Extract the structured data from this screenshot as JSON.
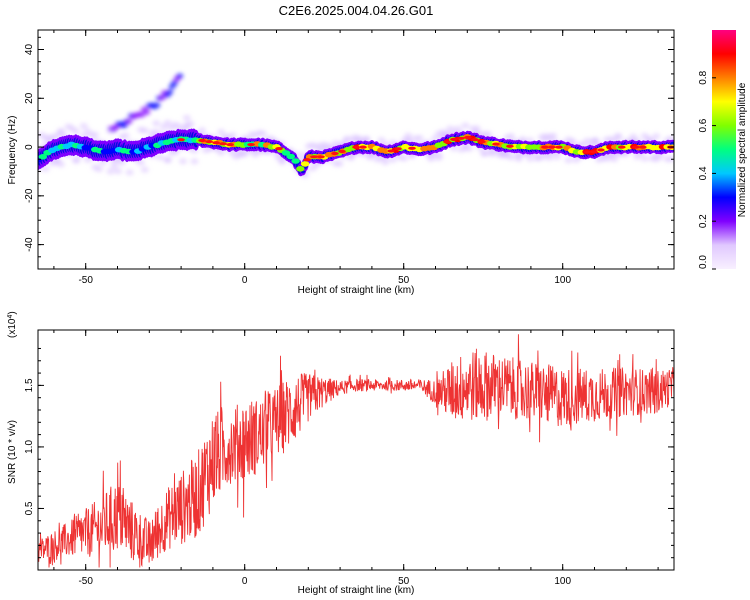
{
  "title": "C2E6.2025.004.04.26.G01",
  "colorbar": {
    "label": "Normalized spectral amplitude",
    "ticks": [
      "0.0",
      "0.2",
      "0.4",
      "0.6",
      "0.8"
    ],
    "tick_values": [
      0.0,
      0.2,
      0.4,
      0.6,
      0.8
    ],
    "range": [
      0,
      1
    ],
    "colormap": [
      "#f8f0ff",
      "#e0c8ff",
      "#8000ff",
      "#0000ff",
      "#00c8ff",
      "#00ff80",
      "#80ff00",
      "#ffff00",
      "#ff8000",
      "#ff0000",
      "#ff0080"
    ]
  },
  "chart_data": [
    {
      "type": "heatmap",
      "xlabel": "Height of straight line (km)",
      "ylabel": "Frequency (Hz)",
      "xlim": [
        -65,
        135
      ],
      "ylim": [
        -50,
        48
      ],
      "xticks": [
        -50,
        0,
        50,
        100
      ],
      "yticks": [
        40,
        20,
        0,
        -20,
        -40
      ],
      "ridge": {
        "x": [
          -65,
          -60,
          -55,
          -50,
          -45,
          -40,
          -35,
          -30,
          -25,
          -20,
          -15,
          -10,
          -5,
          0,
          5,
          10,
          15,
          18,
          20,
          25,
          30,
          35,
          40,
          45,
          50,
          55,
          60,
          65,
          70,
          75,
          80,
          85,
          90,
          95,
          100,
          105,
          110,
          115,
          120,
          125,
          130,
          135
        ],
        "freq": [
          -5,
          -1,
          1,
          0,
          -2,
          -1,
          -2,
          0,
          2,
          3,
          3,
          2,
          1,
          1,
          1,
          0,
          -4,
          -10,
          -4,
          -4,
          -2,
          0,
          0,
          -2,
          0,
          -1,
          0,
          3,
          4,
          2,
          1,
          0,
          0,
          0,
          0,
          -2,
          -2,
          0,
          0,
          0,
          0,
          0
        ]
      },
      "harmonic": {
        "x": [
          -42,
          -38,
          -35,
          -32,
          -29,
          -26,
          -23,
          -20
        ],
        "freq": [
          8,
          10,
          12,
          14,
          17,
          20,
          24,
          29
        ]
      }
    },
    {
      "type": "line",
      "xlabel": "Height of straight line (km)",
      "ylabel": "SNR (10 * v/v)",
      "exponent_label": "(x10",
      "exponent_power": "4",
      "exponent_close": ")",
      "xlim": [
        -65,
        135
      ],
      "ylim": [
        0,
        1.95
      ],
      "xticks": [
        -50,
        0,
        50,
        100
      ],
      "yticks": [
        0.5,
        1.0,
        1.5
      ],
      "ytick_labels": [
        "0.5",
        "1.0",
        "1.5"
      ],
      "color": "#ee3333",
      "envelope": {
        "x": [
          -65,
          -55,
          -45,
          -40,
          -35,
          -30,
          -25,
          -20,
          -15,
          -10,
          -5,
          0,
          5,
          10,
          15,
          20,
          25,
          30,
          35,
          40,
          45,
          50,
          55,
          60,
          65,
          70,
          75,
          80,
          90,
          100,
          110,
          120,
          130,
          135
        ],
        "mean": [
          0.15,
          0.25,
          0.35,
          0.45,
          0.3,
          0.2,
          0.4,
          0.5,
          0.6,
          0.9,
          1.0,
          1.05,
          1.1,
          1.2,
          1.3,
          1.4,
          1.45,
          1.48,
          1.5,
          1.5,
          1.5,
          1.5,
          1.5,
          1.45,
          1.45,
          1.5,
          1.5,
          1.5,
          1.45,
          1.4,
          1.42,
          1.45,
          1.45,
          1.5
        ],
        "spread": [
          0.1,
          0.15,
          0.25,
          0.3,
          0.25,
          0.2,
          0.25,
          0.3,
          0.35,
          0.4,
          0.3,
          0.35,
          0.3,
          0.3,
          0.3,
          0.2,
          0.12,
          0.06,
          0.05,
          0.05,
          0.04,
          0.05,
          0.05,
          0.1,
          0.25,
          0.3,
          0.3,
          0.25,
          0.25,
          0.25,
          0.22,
          0.2,
          0.18,
          0.15
        ]
      }
    }
  ]
}
